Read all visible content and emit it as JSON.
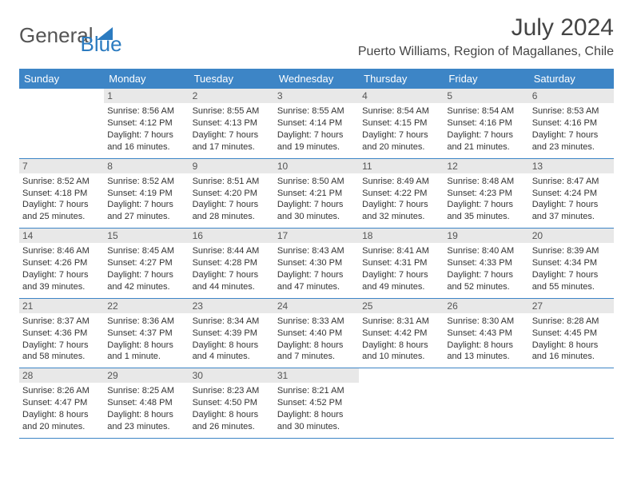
{
  "logo": {
    "general": "General",
    "blue": "Blue"
  },
  "title": "July 2024",
  "location": "Puerto Williams, Region of Magallanes, Chile",
  "colors": {
    "header_bg": "#3d85c6",
    "daynum_bg": "#e8e8e8",
    "text": "#333333"
  },
  "day_headers": [
    "Sunday",
    "Monday",
    "Tuesday",
    "Wednesday",
    "Thursday",
    "Friday",
    "Saturday"
  ],
  "weeks": [
    [
      null,
      {
        "n": "1",
        "sr": "Sunrise: 8:56 AM",
        "ss": "Sunset: 4:12 PM",
        "d1": "Daylight: 7 hours",
        "d2": "and 16 minutes."
      },
      {
        "n": "2",
        "sr": "Sunrise: 8:55 AM",
        "ss": "Sunset: 4:13 PM",
        "d1": "Daylight: 7 hours",
        "d2": "and 17 minutes."
      },
      {
        "n": "3",
        "sr": "Sunrise: 8:55 AM",
        "ss": "Sunset: 4:14 PM",
        "d1": "Daylight: 7 hours",
        "d2": "and 19 minutes."
      },
      {
        "n": "4",
        "sr": "Sunrise: 8:54 AM",
        "ss": "Sunset: 4:15 PM",
        "d1": "Daylight: 7 hours",
        "d2": "and 20 minutes."
      },
      {
        "n": "5",
        "sr": "Sunrise: 8:54 AM",
        "ss": "Sunset: 4:16 PM",
        "d1": "Daylight: 7 hours",
        "d2": "and 21 minutes."
      },
      {
        "n": "6",
        "sr": "Sunrise: 8:53 AM",
        "ss": "Sunset: 4:16 PM",
        "d1": "Daylight: 7 hours",
        "d2": "and 23 minutes."
      }
    ],
    [
      {
        "n": "7",
        "sr": "Sunrise: 8:52 AM",
        "ss": "Sunset: 4:18 PM",
        "d1": "Daylight: 7 hours",
        "d2": "and 25 minutes."
      },
      {
        "n": "8",
        "sr": "Sunrise: 8:52 AM",
        "ss": "Sunset: 4:19 PM",
        "d1": "Daylight: 7 hours",
        "d2": "and 27 minutes."
      },
      {
        "n": "9",
        "sr": "Sunrise: 8:51 AM",
        "ss": "Sunset: 4:20 PM",
        "d1": "Daylight: 7 hours",
        "d2": "and 28 minutes."
      },
      {
        "n": "10",
        "sr": "Sunrise: 8:50 AM",
        "ss": "Sunset: 4:21 PM",
        "d1": "Daylight: 7 hours",
        "d2": "and 30 minutes."
      },
      {
        "n": "11",
        "sr": "Sunrise: 8:49 AM",
        "ss": "Sunset: 4:22 PM",
        "d1": "Daylight: 7 hours",
        "d2": "and 32 minutes."
      },
      {
        "n": "12",
        "sr": "Sunrise: 8:48 AM",
        "ss": "Sunset: 4:23 PM",
        "d1": "Daylight: 7 hours",
        "d2": "and 35 minutes."
      },
      {
        "n": "13",
        "sr": "Sunrise: 8:47 AM",
        "ss": "Sunset: 4:24 PM",
        "d1": "Daylight: 7 hours",
        "d2": "and 37 minutes."
      }
    ],
    [
      {
        "n": "14",
        "sr": "Sunrise: 8:46 AM",
        "ss": "Sunset: 4:26 PM",
        "d1": "Daylight: 7 hours",
        "d2": "and 39 minutes."
      },
      {
        "n": "15",
        "sr": "Sunrise: 8:45 AM",
        "ss": "Sunset: 4:27 PM",
        "d1": "Daylight: 7 hours",
        "d2": "and 42 minutes."
      },
      {
        "n": "16",
        "sr": "Sunrise: 8:44 AM",
        "ss": "Sunset: 4:28 PM",
        "d1": "Daylight: 7 hours",
        "d2": "and 44 minutes."
      },
      {
        "n": "17",
        "sr": "Sunrise: 8:43 AM",
        "ss": "Sunset: 4:30 PM",
        "d1": "Daylight: 7 hours",
        "d2": "and 47 minutes."
      },
      {
        "n": "18",
        "sr": "Sunrise: 8:41 AM",
        "ss": "Sunset: 4:31 PM",
        "d1": "Daylight: 7 hours",
        "d2": "and 49 minutes."
      },
      {
        "n": "19",
        "sr": "Sunrise: 8:40 AM",
        "ss": "Sunset: 4:33 PM",
        "d1": "Daylight: 7 hours",
        "d2": "and 52 minutes."
      },
      {
        "n": "20",
        "sr": "Sunrise: 8:39 AM",
        "ss": "Sunset: 4:34 PM",
        "d1": "Daylight: 7 hours",
        "d2": "and 55 minutes."
      }
    ],
    [
      {
        "n": "21",
        "sr": "Sunrise: 8:37 AM",
        "ss": "Sunset: 4:36 PM",
        "d1": "Daylight: 7 hours",
        "d2": "and 58 minutes."
      },
      {
        "n": "22",
        "sr": "Sunrise: 8:36 AM",
        "ss": "Sunset: 4:37 PM",
        "d1": "Daylight: 8 hours",
        "d2": "and 1 minute."
      },
      {
        "n": "23",
        "sr": "Sunrise: 8:34 AM",
        "ss": "Sunset: 4:39 PM",
        "d1": "Daylight: 8 hours",
        "d2": "and 4 minutes."
      },
      {
        "n": "24",
        "sr": "Sunrise: 8:33 AM",
        "ss": "Sunset: 4:40 PM",
        "d1": "Daylight: 8 hours",
        "d2": "and 7 minutes."
      },
      {
        "n": "25",
        "sr": "Sunrise: 8:31 AM",
        "ss": "Sunset: 4:42 PM",
        "d1": "Daylight: 8 hours",
        "d2": "and 10 minutes."
      },
      {
        "n": "26",
        "sr": "Sunrise: 8:30 AM",
        "ss": "Sunset: 4:43 PM",
        "d1": "Daylight: 8 hours",
        "d2": "and 13 minutes."
      },
      {
        "n": "27",
        "sr": "Sunrise: 8:28 AM",
        "ss": "Sunset: 4:45 PM",
        "d1": "Daylight: 8 hours",
        "d2": "and 16 minutes."
      }
    ],
    [
      {
        "n": "28",
        "sr": "Sunrise: 8:26 AM",
        "ss": "Sunset: 4:47 PM",
        "d1": "Daylight: 8 hours",
        "d2": "and 20 minutes."
      },
      {
        "n": "29",
        "sr": "Sunrise: 8:25 AM",
        "ss": "Sunset: 4:48 PM",
        "d1": "Daylight: 8 hours",
        "d2": "and 23 minutes."
      },
      {
        "n": "30",
        "sr": "Sunrise: 8:23 AM",
        "ss": "Sunset: 4:50 PM",
        "d1": "Daylight: 8 hours",
        "d2": "and 26 minutes."
      },
      {
        "n": "31",
        "sr": "Sunrise: 8:21 AM",
        "ss": "Sunset: 4:52 PM",
        "d1": "Daylight: 8 hours",
        "d2": "and 30 minutes."
      },
      null,
      null,
      null
    ]
  ]
}
